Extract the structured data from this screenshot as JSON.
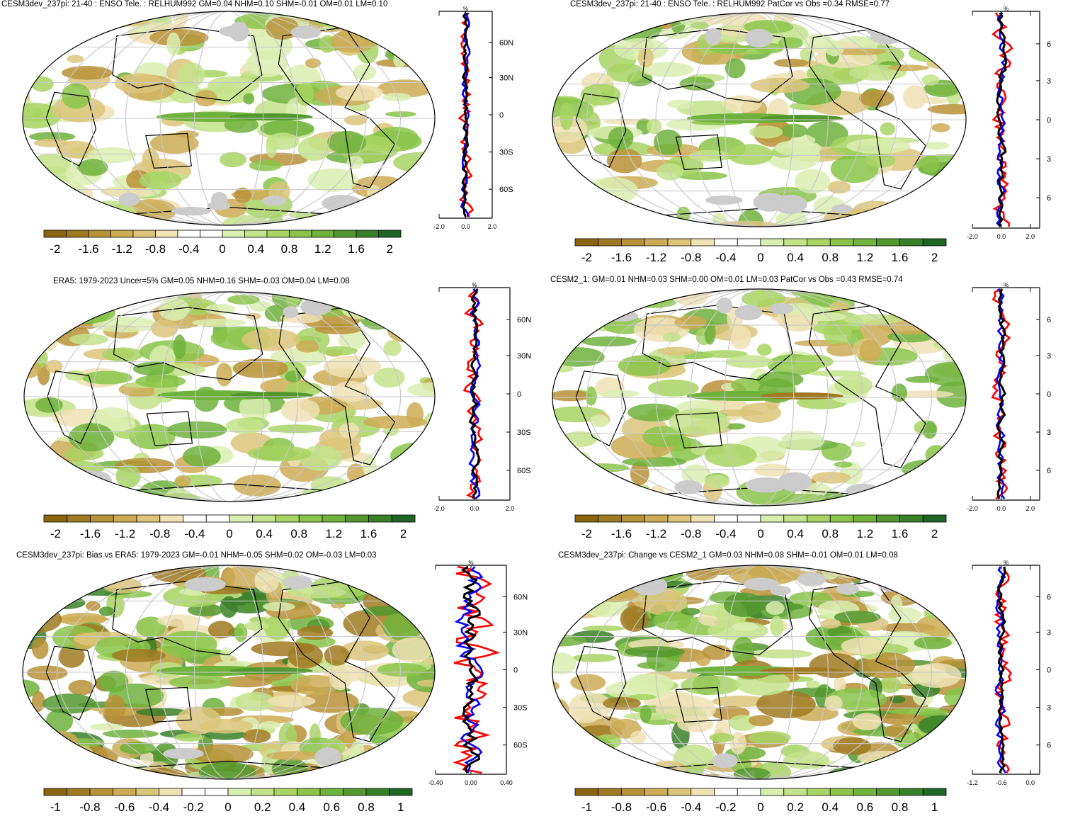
{
  "colors": {
    "brown_dark": "#7a5a14",
    "green_dark": "#1e6b1e",
    "land_mask": "#cccccc",
    "curve_red": "#ff0000",
    "curve_blue": "#0000ff",
    "curve_black": "#000000"
  },
  "panels": [
    {
      "id": "model-pi",
      "title": "CESM3dev_237pi: 21-40 : ENSO Tele. : RELHUM992 GM=0.04 NHM=0.10 SHM=-0.01 OM=0.01 LM=0.10",
      "zonal_unit": "%",
      "lat_labels": [
        "60N",
        "30N",
        "0",
        "30S",
        "60S"
      ],
      "x_ticks": [
        "-2.0",
        "0.0",
        "2.0"
      ],
      "colorbar_labels": [
        "-2",
        "-1.6",
        "-1.2",
        "-0.8",
        "-0.4",
        "0",
        "0.4",
        "0.8",
        "1.2",
        "1.6",
        "2"
      ]
    },
    {
      "id": "model-pi-patcor",
      "title": "CESM3dev_237pi: 21-40 : ENSO Tele. : RELHUM992 PatCor vs Obs =0.34 RMSE=0.77",
      "zonal_unit": "%",
      "lat_labels": [
        "6",
        "3",
        "0",
        "3",
        "6"
      ],
      "x_ticks": [
        "-2.0",
        "0.0",
        "2.0"
      ],
      "colorbar_labels": [
        "-2",
        "-1.6",
        "-1.2",
        "-0.8",
        "-0.4",
        "0",
        "0.4",
        "0.8",
        "1.2",
        "1.6",
        "2"
      ]
    },
    {
      "id": "era5",
      "title": "ERA5: 1979-2023 Uncer=5% GM=0.05 NHM=0.16 SHM=-0.03 OM=0.04 LM=0.08",
      "zonal_unit": "%",
      "lat_labels": [
        "60N",
        "30N",
        "0",
        "30S",
        "60S"
      ],
      "x_ticks": [
        "-2.0",
        "0.0",
        "2.0"
      ],
      "colorbar_labels": [
        "-2",
        "-1.6",
        "-1.2",
        "-0.8",
        "-0.4",
        "0",
        "0.4",
        "0.8",
        "1.2",
        "1.6",
        "2"
      ]
    },
    {
      "id": "cesm2",
      "title": "CESM2_1: GM=0.01 NHM=0.03 SHM=0.00 OM=0.01 LM=0.03 PatCor vs Obs =0.43 RMSE=0.74",
      "zonal_unit": "%",
      "lat_labels": [
        "6",
        "3",
        "0",
        "3",
        "6"
      ],
      "x_ticks": [
        "-2.0",
        "0.0",
        "2.0"
      ],
      "colorbar_labels": [
        "-2",
        "-1.6",
        "-1.2",
        "-0.8",
        "-0.4",
        "0",
        "0.4",
        "0.8",
        "1.2",
        "1.6",
        "2"
      ]
    },
    {
      "id": "bias",
      "title": "CESM3dev_237pi: Bias vs ERA5: 1979-2023 GM=-0.01 NHM=-0.05 SHM=0.02 OM=-0.03 LM=0.03",
      "zonal_unit": "%",
      "lat_labels": [
        "60N",
        "30N",
        "0",
        "30S",
        "60S"
      ],
      "x_ticks": [
        "-0.40",
        "0.00",
        "0.40"
      ],
      "colorbar_labels": [
        "-1",
        "-0.8",
        "-0.6",
        "-0.4",
        "-0.2",
        "0",
        "0.2",
        "0.4",
        "0.6",
        "0.8",
        "1"
      ]
    },
    {
      "id": "change",
      "title": "CESM3dev_237pi: Change vs CESM2_1 GM=0.03 NHM=0.08 SHM=-0.01 OM=0.01 LM=0.08",
      "zonal_unit": "%",
      "lat_labels": [
        "6",
        "3",
        "0",
        "3",
        "6"
      ],
      "x_ticks": [
        "-1.2",
        "-0.6",
        "0.0"
      ],
      "colorbar_labels": [
        "-1",
        "-0.8",
        "-0.6",
        "-0.4",
        "-0.2",
        "0",
        "0.2",
        "0.4",
        "0.6",
        "0.8",
        "1"
      ]
    }
  ],
  "chart_data": [
    {
      "type": "heatmap",
      "title": "CESM3dev_237pi: 21-40 : ENSO Tele. : RELHUM992 GM=0.04 NHM=0.10 SHM=-0.01 OM=0.01 LM=0.10",
      "colorbar": [
        -2,
        -1.6,
        -1.2,
        -0.8,
        -0.4,
        0,
        0.4,
        0.8,
        1.2,
        1.6,
        2
      ],
      "zonal_mean_xlim": [
        -2.0,
        2.0
      ],
      "zonal_mean_lat_ticks": [
        "60N",
        "30N",
        "0",
        "30S",
        "60S"
      ]
    },
    {
      "type": "heatmap",
      "title": "CESM3dev_237pi: 21-40 : ENSO Tele. : RELHUM992 PatCor vs Obs =0.34 RMSE=0.77",
      "colorbar": [
        -2,
        -1.6,
        -1.2,
        -0.8,
        -0.4,
        0,
        0.4,
        0.8,
        1.2,
        1.6,
        2
      ],
      "zonal_mean_xlim": [
        -2.0,
        2.0
      ]
    },
    {
      "type": "heatmap",
      "title": "ERA5: 1979-2023 Uncer=5% GM=0.05 NHM=0.16 SHM=-0.03 OM=0.04 LM=0.08",
      "colorbar": [
        -2,
        -1.6,
        -1.2,
        -0.8,
        -0.4,
        0,
        0.4,
        0.8,
        1.2,
        1.6,
        2
      ],
      "zonal_mean_xlim": [
        -2.0,
        2.0
      ]
    },
    {
      "type": "heatmap",
      "title": "CESM2_1: GM=0.01 NHM=0.03 SHM=0.00 OM=0.01 LM=0.03 PatCor vs Obs =0.43 RMSE=0.74",
      "colorbar": [
        -2,
        -1.6,
        -1.2,
        -0.8,
        -0.4,
        0,
        0.4,
        0.8,
        1.2,
        1.6,
        2
      ],
      "zonal_mean_xlim": [
        -2.0,
        2.0
      ]
    },
    {
      "type": "heatmap",
      "title": "CESM3dev_237pi: Bias vs ERA5: 1979-2023 GM=-0.01 NHM=-0.05 SHM=0.02 OM=-0.03 LM=0.03",
      "colorbar": [
        -1,
        -0.8,
        -0.6,
        -0.4,
        -0.2,
        0,
        0.2,
        0.4,
        0.6,
        0.8,
        1
      ],
      "zonal_mean_xlim": [
        -0.4,
        0.4
      ]
    },
    {
      "type": "heatmap",
      "title": "CESM3dev_237pi: Change vs CESM2_1 GM=0.03 NHM=0.08 SHM=-0.01 OM=0.01 LM=0.08",
      "colorbar": [
        -1,
        -0.8,
        -0.6,
        -0.4,
        -0.2,
        0,
        0.2,
        0.4,
        0.6,
        0.8,
        1
      ],
      "zonal_mean_xlim": [
        -1.2,
        0.0
      ]
    }
  ]
}
